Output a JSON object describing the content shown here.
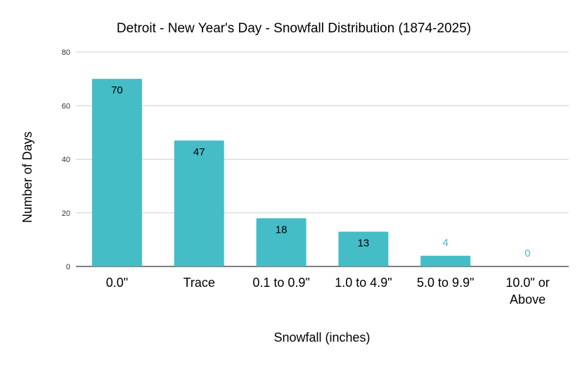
{
  "chart_data": {
    "type": "bar",
    "title": "Detroit - New Year's Day - Snowfall Distribution (1874-2025)",
    "xlabel": "Snowfall (inches)",
    "ylabel": "Number of Days",
    "categories": [
      [
        "0.0\""
      ],
      [
        "Trace"
      ],
      [
        "0.1 to 0.9\""
      ],
      [
        "1.0 to 4.9\""
      ],
      [
        "5.0 to 9.9\""
      ],
      [
        "10.0\" or",
        "Above"
      ]
    ],
    "values": [
      70,
      47,
      18,
      13,
      4,
      0
    ],
    "data_labels": [
      "70",
      "47",
      "18",
      "13",
      "4",
      "0"
    ],
    "yticks": [
      "0",
      "20",
      "40",
      "60",
      "80"
    ],
    "ytick_values": [
      0,
      20,
      40,
      60,
      80
    ],
    "ylim": [
      0,
      80
    ],
    "grid": true,
    "legend": "none",
    "colors": {
      "bar": "#45bdc6",
      "grid": "#d0d0d0",
      "axis": "#333333",
      "text": "#000000",
      "label_outside": "#45bdc6"
    }
  }
}
